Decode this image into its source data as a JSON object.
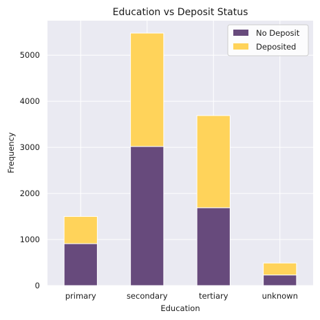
{
  "chart_data": {
    "type": "bar",
    "stacked": true,
    "title": "Education vs Deposit Status",
    "xlabel": "Education",
    "ylabel": "Frequency",
    "categories": [
      "primary",
      "secondary",
      "tertiary",
      "unknown"
    ],
    "series": [
      {
        "name": "No Deposit",
        "values": [
          910,
          3020,
          1690,
          230
        ],
        "color": "#674a7c"
      },
      {
        "name": "Deposited",
        "values": [
          590,
          2460,
          2000,
          260
        ],
        "color": "#ffd35a"
      }
    ],
    "ylim": [
      0,
      5750
    ],
    "yticks": [
      0,
      1000,
      2000,
      3000,
      4000,
      5000
    ],
    "grid": true,
    "legend_position": "top-right",
    "background_color": "#eaeaf2"
  }
}
